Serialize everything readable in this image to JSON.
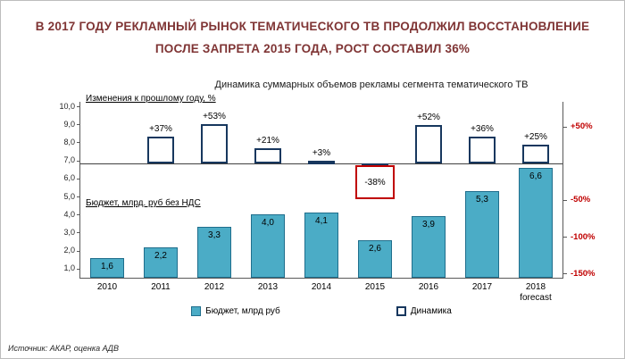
{
  "title": {
    "line1": "В 2017 ГОДУ РЕКЛАМНЫЙ РЫНОК ТЕМАТИЧЕСКОГО ТВ ПРОДОЛЖИЛ ВОССТАНОВЛЕНИЕ",
    "line2": "ПОСЛЕ ЗАПРЕТА 2015 ГОДА, РОСТ СОСТАВИЛ 36%"
  },
  "source": "Источник: АКАР, оценка АДВ",
  "colors": {
    "title": "#7f3434",
    "bar_fill": "#4bacc6",
    "bar_border": "#1f6e8c",
    "marker_border": "#17375e",
    "highlight": "#c00000",
    "right_axis_text": "#c00000",
    "axis_line": "#595959"
  },
  "legend": [
    {
      "label": "Бюджет, млрд руб",
      "swatch": "filled"
    },
    {
      "label": "Динамика",
      "swatch": "outline"
    }
  ],
  "chart_data": {
    "type": "bar",
    "title": "Динамика суммарных объемов рекламы сегмента тематического ТВ",
    "categories": [
      "2010",
      "2011",
      "2012",
      "2013",
      "2014",
      "2015",
      "2016",
      "2017",
      "2018\nforecast"
    ],
    "series": [
      {
        "name": "Бюджет, млрд руб",
        "type": "column",
        "values": [
          1.6,
          2.2,
          3.3,
          4.0,
          4.1,
          2.6,
          3.9,
          5.3,
          6.6
        ],
        "labels": [
          "1,6",
          "2,2",
          "3,3",
          "4,0",
          "4,1",
          "2,6",
          "3,9",
          "5,3",
          "6,6"
        ]
      },
      {
        "name": "Динамика",
        "type": "floating-column",
        "values": [
          null,
          37,
          53,
          21,
          3,
          -38,
          52,
          36,
          25
        ],
        "labels": [
          null,
          "+37%",
          "+53%",
          "+21%",
          "+3%",
          "-38%",
          "+52%",
          "+36%",
          "+25%"
        ]
      }
    ],
    "left_axis": {
      "label": "Бюджет, млрд. руб без НДС",
      "min": 0.5,
      "max": 10.25,
      "tick_labels": [
        "10,0",
        "9,0",
        "8,0",
        "7,0",
        "6,0",
        "5,0",
        "4,0",
        "3,0",
        "2,0",
        "1,0"
      ],
      "tick_values": [
        10,
        9,
        8,
        7,
        6,
        5,
        4,
        3,
        2,
        1
      ]
    },
    "right_axis": {
      "label": "Изменения к прошлому году, %",
      "min": -156,
      "max": 84,
      "tick_labels": [
        "+50%",
        "-50%",
        "-100%",
        "-150%"
      ],
      "tick_values": [
        50,
        -50,
        -100,
        -150
      ]
    },
    "highlight": {
      "category": "2015",
      "index": 5,
      "label": "-38%"
    },
    "grid": "zero-line-only",
    "legend_position": "bottom"
  }
}
